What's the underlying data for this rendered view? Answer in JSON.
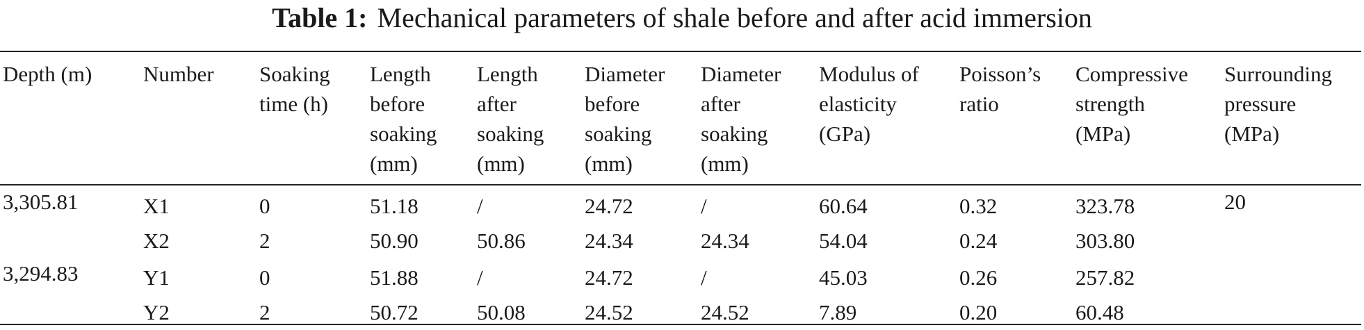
{
  "title": {
    "label": "Table 1:",
    "text": "Mechanical parameters of shale before and after acid immersion"
  },
  "table": {
    "columns": [
      {
        "lines": [
          "Depth (m)"
        ]
      },
      {
        "lines": [
          "Number"
        ]
      },
      {
        "lines": [
          "Soaking",
          "time (h)"
        ]
      },
      {
        "lines": [
          "Length",
          "before",
          "soaking",
          "(mm)"
        ]
      },
      {
        "lines": [
          "Length",
          "after",
          "soaking",
          "(mm)"
        ]
      },
      {
        "lines": [
          "Diameter",
          "before",
          "soaking",
          "(mm)"
        ]
      },
      {
        "lines": [
          "Diameter",
          "after",
          "soaking",
          "(mm)"
        ]
      },
      {
        "lines": [
          "Modulus of",
          "elasticity",
          "(GPa)"
        ]
      },
      {
        "lines": [
          "Poisson’s",
          "ratio"
        ]
      },
      {
        "lines": [
          "Compressive",
          "strength",
          "(MPa)"
        ]
      },
      {
        "lines": [
          "Surrounding",
          "pressure",
          "(MPa)"
        ]
      }
    ],
    "rows": [
      [
        "3,305.81",
        "X1",
        "0",
        "51.18",
        "/",
        "24.72",
        "/",
        "60.64",
        "0.32",
        "323.78",
        "20"
      ],
      [
        null,
        "X2",
        "2",
        "50.90",
        "50.86",
        "24.34",
        "24.34",
        "54.04",
        "0.24",
        "303.80",
        null
      ],
      [
        "3,294.83",
        "Y1",
        "0",
        "51.88",
        "/",
        "24.72",
        "/",
        "45.03",
        "0.26",
        "257.82",
        null
      ],
      [
        null,
        "Y2",
        "2",
        "50.72",
        "50.08",
        "24.52",
        "24.52",
        "7.89",
        "0.20",
        "60.48",
        null
      ]
    ]
  }
}
